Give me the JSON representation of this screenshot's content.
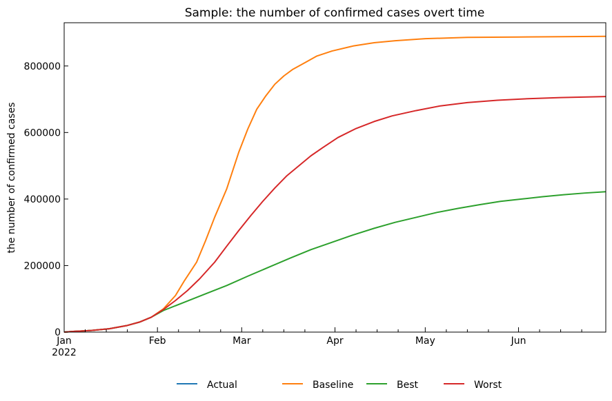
{
  "chart_data": {
    "type": "line",
    "title": "Sample: the number of confirmed cases overt time",
    "xlabel": "",
    "ylabel": "the number of confirmed cases",
    "x_start": "2022-01-01",
    "x_end": "2022-06-30",
    "xlim": [
      "2022-01-01",
      "2022-06-30"
    ],
    "ylim": [
      0,
      930000
    ],
    "x_ticks": [
      {
        "date": "2022-01-01",
        "label": "Jan",
        "sublabel": "2022"
      },
      {
        "date": "2022-02-01",
        "label": "Feb",
        "sublabel": ""
      },
      {
        "date": "2022-03-01",
        "label": "Mar",
        "sublabel": ""
      },
      {
        "date": "2022-04-01",
        "label": "Apr",
        "sublabel": ""
      },
      {
        "date": "2022-05-01",
        "label": "May",
        "sublabel": ""
      },
      {
        "date": "2022-06-01",
        "label": "Jun",
        "sublabel": ""
      }
    ],
    "x_minor_tick_dates": [
      "2022-01-08",
      "2022-01-15",
      "2022-01-22",
      "2022-02-08",
      "2022-02-15",
      "2022-02-22",
      "2022-03-08",
      "2022-03-15",
      "2022-03-22",
      "2022-04-08",
      "2022-04-15",
      "2022-04-22",
      "2022-05-08",
      "2022-05-15",
      "2022-05-22",
      "2022-06-08",
      "2022-06-15",
      "2022-06-22"
    ],
    "y_ticks": [
      {
        "value": 0,
        "label": "0"
      },
      {
        "value": 200000,
        "label": "200000"
      },
      {
        "value": 400000,
        "label": "400000"
      },
      {
        "value": 600000,
        "label": "600000"
      },
      {
        "value": 800000,
        "label": "800000"
      }
    ],
    "grid": false,
    "legend_position": "bottom-center",
    "series": [
      {
        "name": "Actual",
        "color": "#1f77b4",
        "points": [
          [
            "2022-01-01",
            0
          ],
          [
            "2022-01-04",
            2000
          ],
          [
            "2022-01-10",
            5000
          ],
          [
            "2022-01-16",
            10000
          ],
          [
            "2022-01-22",
            20000
          ],
          [
            "2022-01-26",
            30000
          ],
          [
            "2022-01-30",
            45000
          ]
        ]
      },
      {
        "name": "Baseline",
        "color": "#ff7f0e",
        "points": [
          [
            "2022-01-01",
            0
          ],
          [
            "2022-01-04",
            2000
          ],
          [
            "2022-01-10",
            5000
          ],
          [
            "2022-01-16",
            10000
          ],
          [
            "2022-01-22",
            20000
          ],
          [
            "2022-01-26",
            30000
          ],
          [
            "2022-01-30",
            45000
          ],
          [
            "2022-02-03",
            70000
          ],
          [
            "2022-02-07",
            110000
          ],
          [
            "2022-02-10",
            155000
          ],
          [
            "2022-02-14",
            210000
          ],
          [
            "2022-02-17",
            275000
          ],
          [
            "2022-02-20",
            345000
          ],
          [
            "2022-02-24",
            430000
          ],
          [
            "2022-02-28",
            540000
          ],
          [
            "2022-03-03",
            610000
          ],
          [
            "2022-03-06",
            670000
          ],
          [
            "2022-03-09",
            710000
          ],
          [
            "2022-03-12",
            745000
          ],
          [
            "2022-03-15",
            770000
          ],
          [
            "2022-03-18",
            790000
          ],
          [
            "2022-03-22",
            810000
          ],
          [
            "2022-03-26",
            830000
          ],
          [
            "2022-03-31",
            845000
          ],
          [
            "2022-04-07",
            860000
          ],
          [
            "2022-04-14",
            870000
          ],
          [
            "2022-04-21",
            876000
          ],
          [
            "2022-05-01",
            882000
          ],
          [
            "2022-05-15",
            886000
          ],
          [
            "2022-06-01",
            887000
          ],
          [
            "2022-06-15",
            888000
          ],
          [
            "2022-06-30",
            889000
          ]
        ]
      },
      {
        "name": "Best",
        "color": "#2ca02c",
        "points": [
          [
            "2022-01-01",
            0
          ],
          [
            "2022-01-04",
            2000
          ],
          [
            "2022-01-10",
            5000
          ],
          [
            "2022-01-16",
            10000
          ],
          [
            "2022-01-22",
            20000
          ],
          [
            "2022-01-26",
            30000
          ],
          [
            "2022-01-30",
            45000
          ],
          [
            "2022-02-03",
            65000
          ],
          [
            "2022-02-10",
            90000
          ],
          [
            "2022-02-17",
            115000
          ],
          [
            "2022-02-24",
            140000
          ],
          [
            "2022-03-03",
            168000
          ],
          [
            "2022-03-10",
            195000
          ],
          [
            "2022-03-17",
            222000
          ],
          [
            "2022-03-24",
            248000
          ],
          [
            "2022-03-31",
            270000
          ],
          [
            "2022-04-07",
            292000
          ],
          [
            "2022-04-14",
            312000
          ],
          [
            "2022-04-21",
            330000
          ],
          [
            "2022-04-28",
            345000
          ],
          [
            "2022-05-05",
            360000
          ],
          [
            "2022-05-12",
            372000
          ],
          [
            "2022-05-19",
            383000
          ],
          [
            "2022-05-26",
            393000
          ],
          [
            "2022-06-02",
            400000
          ],
          [
            "2022-06-09",
            407000
          ],
          [
            "2022-06-16",
            413000
          ],
          [
            "2022-06-23",
            418000
          ],
          [
            "2022-06-30",
            422000
          ]
        ]
      },
      {
        "name": "Worst",
        "color": "#d62728",
        "points": [
          [
            "2022-01-01",
            0
          ],
          [
            "2022-01-04",
            2000
          ],
          [
            "2022-01-10",
            5000
          ],
          [
            "2022-01-16",
            10000
          ],
          [
            "2022-01-22",
            20000
          ],
          [
            "2022-01-26",
            30000
          ],
          [
            "2022-01-30",
            45000
          ],
          [
            "2022-02-03",
            68000
          ],
          [
            "2022-02-07",
            95000
          ],
          [
            "2022-02-11",
            125000
          ],
          [
            "2022-02-15",
            160000
          ],
          [
            "2022-02-20",
            210000
          ],
          [
            "2022-02-24",
            258000
          ],
          [
            "2022-02-28",
            305000
          ],
          [
            "2022-03-04",
            350000
          ],
          [
            "2022-03-08",
            393000
          ],
          [
            "2022-03-12",
            433000
          ],
          [
            "2022-03-16",
            470000
          ],
          [
            "2022-03-20",
            500000
          ],
          [
            "2022-03-24",
            530000
          ],
          [
            "2022-03-28",
            555000
          ],
          [
            "2022-04-02",
            585000
          ],
          [
            "2022-04-08",
            612000
          ],
          [
            "2022-04-14",
            633000
          ],
          [
            "2022-04-20",
            650000
          ],
          [
            "2022-04-28",
            666000
          ],
          [
            "2022-05-06",
            680000
          ],
          [
            "2022-05-15",
            690000
          ],
          [
            "2022-05-25",
            697000
          ],
          [
            "2022-06-05",
            702000
          ],
          [
            "2022-06-15",
            705000
          ],
          [
            "2022-06-30",
            708000
          ]
        ]
      }
    ]
  }
}
